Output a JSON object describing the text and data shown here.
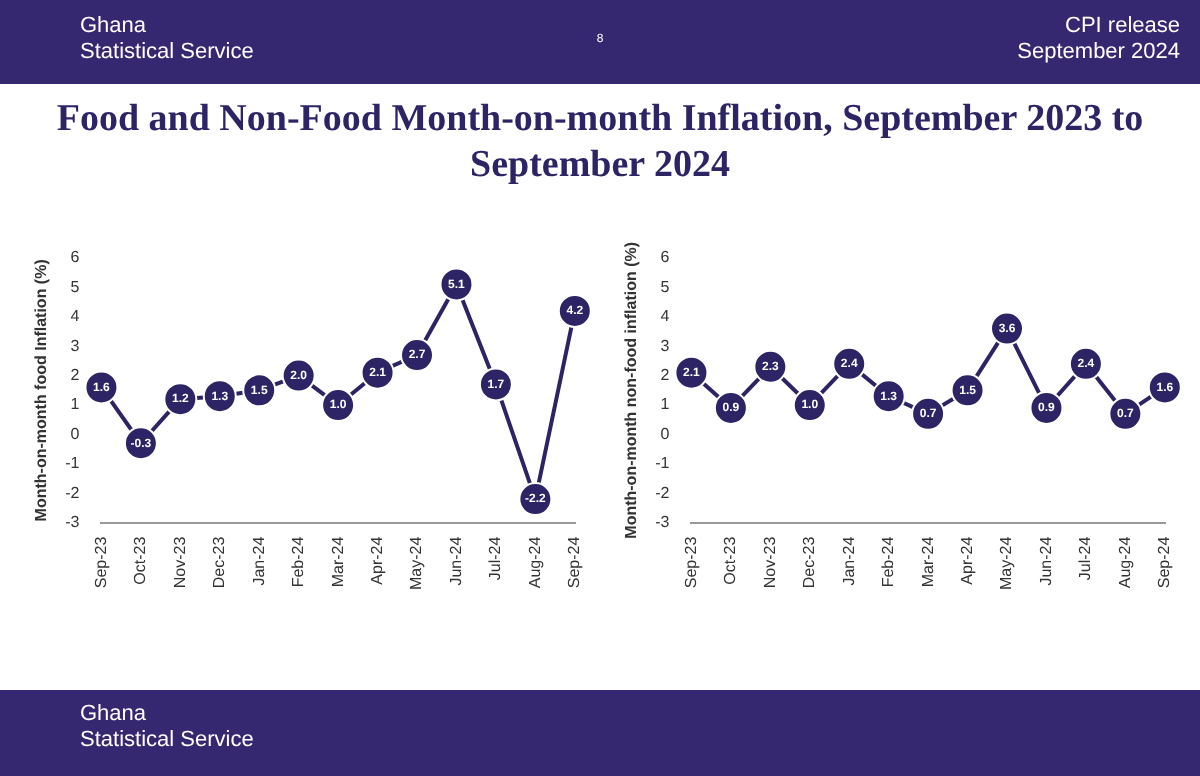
{
  "chart_data": [
    {
      "type": "line",
      "title": "Food and Non-Food Month-on-month Inflation, September 2023 to September 2024",
      "ylabel": "Month-on-month food Inflation (%)",
      "annotations": [
        "Ghana\nStatistical Service",
        "8",
        "CPI release\nSeptember 2024",
        "Ghana\nStatistical Service"
      ],
      "categories": [
        "Sep-23",
        "Oct-23",
        "Nov-23",
        "Dec-23",
        "Jan-24",
        "Feb-24",
        "Mar-24",
        "Apr-24",
        "May-24",
        "Jun-24",
        "Jul-24",
        "Aug-24",
        "Sep-24"
      ],
      "series": [
        {
          "color": "#2d2466",
          "values": [
            1.6,
            -0.3,
            1.2,
            1.3,
            1.5,
            2.0,
            1.0,
            2.1,
            2.7,
            5.1,
            1.7,
            -2.2,
            4.2
          ],
          "value_labels": [
            "1.6",
            "-0.3",
            "1.2",
            "1.3",
            "1.5",
            "2.0",
            "1.0",
            "2.1",
            "2.7",
            "5.1",
            "1.7",
            "-2.2",
            "4.2"
          ]
        }
      ],
      "ylim": [
        -3,
        6
      ],
      "yticks": [
        -3,
        -2,
        -1,
        0,
        1,
        2,
        3,
        4,
        5,
        6
      ],
      "grid": false,
      "legend": false,
      "marker": "circle"
    },
    {
      "type": "line",
      "ylabel": "Month-on-month non-food inflation (%)",
      "categories": [
        "Sep-23",
        "Oct-23",
        "Nov-23",
        "Dec-23",
        "Jan-24",
        "Feb-24",
        "Mar-24",
        "Apr-24",
        "May-24",
        "Jun-24",
        "Jul-24",
        "Aug-24",
        "Sep-24"
      ],
      "series": [
        {
          "color": "#2d2466",
          "values": [
            2.1,
            0.9,
            2.3,
            1.0,
            2.4,
            1.3,
            0.7,
            1.5,
            3.6,
            0.9,
            2.4,
            0.7,
            1.6
          ],
          "value_labels": [
            "2.1",
            "0.9",
            "2.3",
            "1.0",
            "2.4",
            "1.3",
            "0.7",
            "1.5",
            "3.6",
            "0.9",
            "2.4",
            "0.7",
            "1.6"
          ]
        }
      ],
      "ylim": [
        -3,
        6
      ],
      "yticks": [
        -3,
        -2,
        -1,
        0,
        1,
        2,
        3,
        4,
        5,
        6
      ],
      "grid": false,
      "legend": false,
      "marker": "circle"
    }
  ]
}
